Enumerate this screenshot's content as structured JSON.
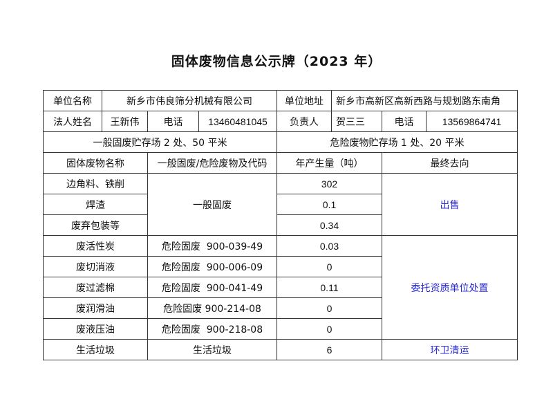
{
  "title": "固体废物信息公示牌（2023 年）",
  "info": {
    "unit_name_label": "单位名称",
    "unit_name": "新乡市伟良筛分机械有限公司",
    "address_label": "单位地址",
    "address": "新乡市高新区高新西路与规划路东南角",
    "legal_label": "法人姓名",
    "legal_name": "王新伟",
    "phone_label": "电话",
    "legal_phone": "13460481045",
    "manager_label": "负责人",
    "manager_name": "贺三三",
    "manager_phone_label": "电话",
    "manager_phone": "13569864741",
    "general_storage": "一般固废贮存场 2 处、50 平米",
    "hazard_storage": "危险废物贮存场 1 处、20 平米"
  },
  "headers": [
    "固体废物名称",
    "一般固废/危险废物及代码",
    "年产生量（吨）",
    "最终去向"
  ],
  "rows": [
    {
      "name": "边角料、铁削",
      "amount": "302"
    },
    {
      "name": "焊渣",
      "amount": "0.1"
    },
    {
      "name": "废弃包装等",
      "amount": "0.34"
    },
    {
      "name": "废活性炭",
      "code": "危险固废  900-039-49",
      "amount": "0.03"
    },
    {
      "name": "废切消液",
      "code": "危险固废  900-006-09",
      "amount": "0"
    },
    {
      "name": "废过滤棉",
      "code": "危险固废  900-041-49",
      "amount": "0.11"
    },
    {
      "name": "废润滑油",
      "code": "危险固废 900-214-08",
      "amount": "0"
    },
    {
      "name": "废液压油",
      "code": "危险固废  900-218-08",
      "amount": "0"
    },
    {
      "name": "生活垃圾",
      "code": "生活垃圾",
      "amount": "6"
    }
  ],
  "general_code": "一般固废",
  "destinations": {
    "sale": "出售",
    "hazard": "委托资质单位处置",
    "domestic": "环卫清运"
  },
  "colors": {
    "destination_text": "#2b2bd6"
  }
}
